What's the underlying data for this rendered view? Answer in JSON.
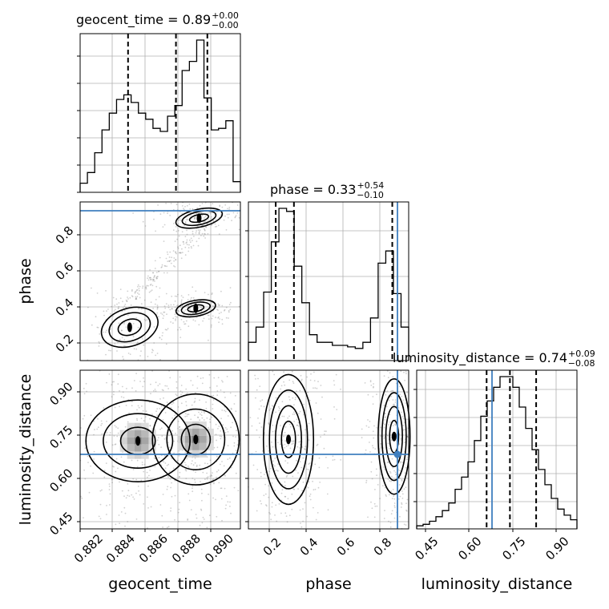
{
  "colors": {
    "truth": "#3f7fbf",
    "hist": "#000000",
    "grid": "#b0b0b0",
    "scatter": "#666666"
  },
  "titles": {
    "geocent_time": {
      "text": "geocent_time = 0.89",
      "sup": "+0.00",
      "sub": "−0.00"
    },
    "phase": {
      "text": "phase = 0.33",
      "sup": "+0.54",
      "sub": "−0.10"
    },
    "luminosity_distance": {
      "text": "luminosity_distance = 0.74",
      "sup": "+0.09",
      "sub": "−0.08"
    }
  },
  "labels": {
    "x_geocent_time": "geocent_time",
    "x_phase": "phase",
    "x_luminosity_distance": "luminosity_distance",
    "y_phase": "phase",
    "y_luminosity_distance": "luminosity_distance"
  },
  "chart_data": {
    "type": "corner",
    "parameters": [
      "geocent_time",
      "phase",
      "luminosity_distance"
    ],
    "ranges": {
      "geocent_time": [
        0.8815,
        0.8912
      ],
      "phase": [
        0.08,
        0.96
      ],
      "luminosity_distance": [
        0.42,
        0.97
      ]
    },
    "ticks": {
      "geocent_time": [
        "0.882",
        "0.884",
        "0.886",
        "0.888",
        "0.890"
      ],
      "phase": [
        "0.2",
        "0.4",
        "0.6",
        "0.8"
      ],
      "luminosity_distance": [
        "0.45",
        "0.60",
        "0.75",
        "0.90"
      ]
    },
    "truths": {
      "geocent_time": null,
      "phase": 0.93,
      "luminosity_distance": 0.68
    },
    "quantiles": {
      "geocent_time": [
        0.8844,
        0.8873,
        0.8892
      ],
      "phase": [
        0.23,
        0.33,
        0.87
      ],
      "luminosity_distance": [
        0.66,
        0.74,
        0.83
      ]
    },
    "histograms": {
      "geocent_time": {
        "edges_min": 0.8815,
        "edges_max": 0.8912,
        "counts": [
          0.06,
          0.13,
          0.26,
          0.41,
          0.52,
          0.61,
          0.64,
          0.59,
          0.52,
          0.48,
          0.42,
          0.4,
          0.5,
          0.57,
          0.8,
          0.86,
          1.0,
          0.62,
          0.41,
          0.42,
          0.47,
          0.07
        ]
      },
      "phase": {
        "edges_min": 0.08,
        "edges_max": 0.96,
        "counts": [
          0.12,
          0.22,
          0.45,
          0.78,
          1.0,
          0.98,
          0.62,
          0.38,
          0.17,
          0.12,
          0.12,
          0.1,
          0.1,
          0.09,
          0.08,
          0.12,
          0.28,
          0.64,
          0.72,
          0.44,
          0.22
        ]
      },
      "luminosity_distance": {
        "edges_min": 0.42,
        "edges_max": 0.97,
        "counts": [
          0.02,
          0.03,
          0.05,
          0.08,
          0.12,
          0.17,
          0.26,
          0.34,
          0.44,
          0.58,
          0.74,
          0.84,
          0.93,
          1.0,
          1.0,
          0.93,
          0.8,
          0.66,
          0.52,
          0.39,
          0.29,
          0.2,
          0.13,
          0.09,
          0.06
        ]
      }
    },
    "pair_contours": {
      "geocent_time_vs_phase": [
        {
          "type": "blob",
          "cx": 0.8845,
          "cy": 0.265,
          "rx": 0.0016,
          "ry": 0.095,
          "rot": -18
        },
        {
          "type": "blob",
          "cx": 0.8885,
          "cy": 0.37,
          "rx": 0.0011,
          "ry": 0.04,
          "rot": -10
        },
        {
          "type": "blob",
          "cx": 0.8887,
          "cy": 0.87,
          "rx": 0.0013,
          "ry": 0.045,
          "rot": -12
        }
      ],
      "phase_vs_luminosity_distance": [
        {
          "type": "blob",
          "cx": 0.3,
          "cy": 0.73,
          "rx": 0.11,
          "ry": 0.18,
          "rot": 0
        },
        {
          "type": "blob",
          "cx": 0.88,
          "cy": 0.74,
          "rx": 0.07,
          "ry": 0.16,
          "rot": 0
        }
      ],
      "geocent_time_vs_luminosity_distance": [
        {
          "type": "blob",
          "cx": 0.885,
          "cy": 0.725,
          "rx": 0.003,
          "ry": 0.135,
          "rot": 0
        },
        {
          "type": "blob",
          "cx": 0.8885,
          "cy": 0.73,
          "rx": 0.0025,
          "ry": 0.15,
          "rot": 0
        }
      ]
    }
  }
}
